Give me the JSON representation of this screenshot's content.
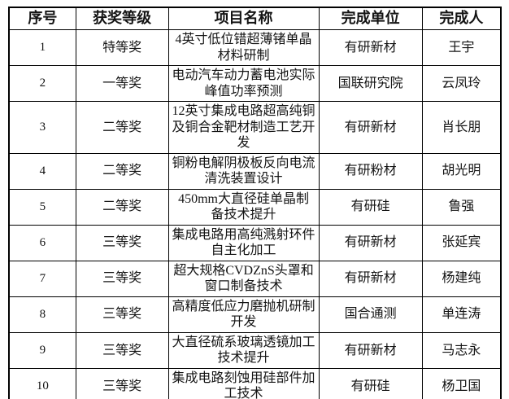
{
  "table": {
    "headers": {
      "no": "序号",
      "level": "获奖等级",
      "project": "项目名称",
      "unit": "完成单位",
      "person": "完成人"
    },
    "rows": [
      {
        "no": "1",
        "level": "特等奖",
        "project": "4英寸低位错超薄锗单晶材料研制",
        "unit": "有研新材",
        "person": "王宇"
      },
      {
        "no": "2",
        "level": "一等奖",
        "project": "电动汽车动力蓄电池实际峰值功率预测",
        "unit": "国联研究院",
        "person": "云凤玲"
      },
      {
        "no": "3",
        "level": "二等奖",
        "project": "12英寸集成电路超高纯铜及铜合金靶材制造工艺开发",
        "unit": "有研新材",
        "person": "肖长朋"
      },
      {
        "no": "4",
        "level": "二等奖",
        "project": "铜粉电解阴极板反向电流清洗装置设计",
        "unit": "有研粉材",
        "person": "胡光明"
      },
      {
        "no": "5",
        "level": "二等奖",
        "project": "450mm大直径硅单晶制备技术提升",
        "unit": "有研硅",
        "person": "鲁强"
      },
      {
        "no": "6",
        "level": "三等奖",
        "project": "集成电路用高纯溅射环件自主化加工",
        "unit": "有研新材",
        "person": "张延宾"
      },
      {
        "no": "7",
        "level": "三等奖",
        "project": "超大规格CVDZnS头罩和窗口制备技术",
        "unit": "有研新材",
        "person": "杨建纯"
      },
      {
        "no": "8",
        "level": "三等奖",
        "project": "高精度低应力磨抛机研制开发",
        "unit": "国合通测",
        "person": "单连涛"
      },
      {
        "no": "9",
        "level": "三等奖",
        "project": "大直径硫系玻璃透镜加工技术提升",
        "unit": "有研新材",
        "person": "马志永"
      },
      {
        "no": "10",
        "level": "三等奖",
        "project": "集成电路刻蚀用硅部件加工技术",
        "unit": "有研硅",
        "person": "杨卫国"
      }
    ],
    "colors": {
      "border": "#000000",
      "text": "#141414",
      "background": "#ffffff"
    }
  }
}
